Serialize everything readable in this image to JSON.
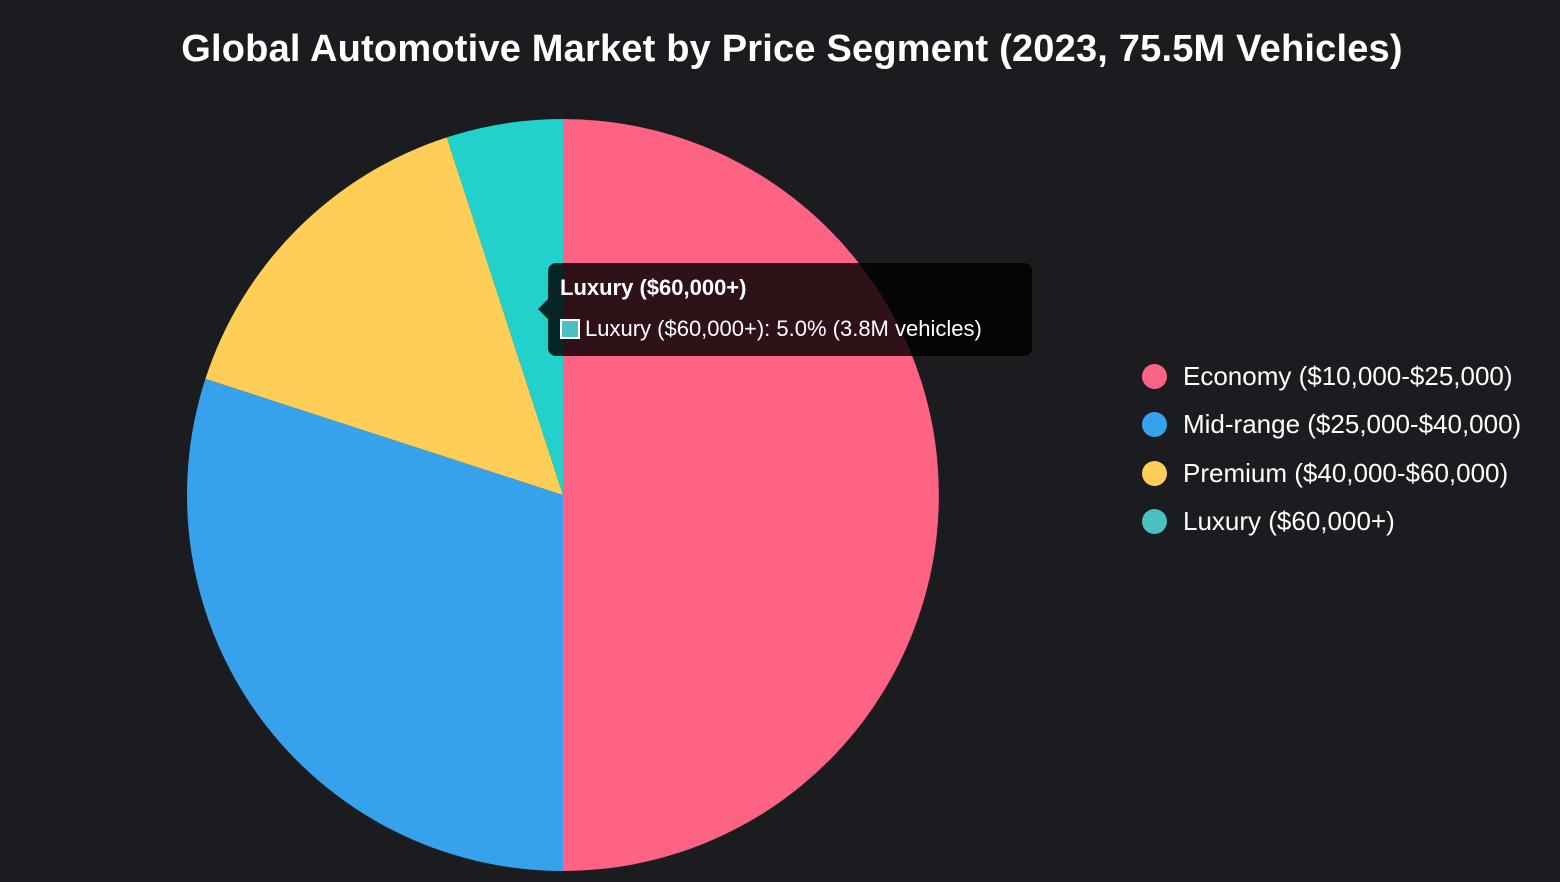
{
  "chart_data": {
    "type": "pie",
    "title": "Global Automotive Market by Price Segment (2023, 75.5M Vehicles)",
    "categories": [
      "Economy ($10,000-$25,000)",
      "Mid-range ($25,000-$40,000)",
      "Premium ($40,000-$60,000)",
      "Luxury ($60,000+)"
    ],
    "values": [
      50.0,
      30.0,
      15.0,
      5.0
    ],
    "unit": "%",
    "colors": [
      "#ff6384",
      "#36a2eb",
      "#ffce56",
      "#22d0cc"
    ],
    "legend_colors": [
      "#ff6384",
      "#36a2eb",
      "#ffce56",
      "#4bc0c0"
    ],
    "legend_position": "right"
  },
  "tooltip": {
    "title": "Luxury ($60,000+)",
    "body": "Luxury ($60,000+): 5.0% (3.8M vehicles)",
    "swatch_color": "#4bc0c0"
  },
  "background_color": "#1b1c20"
}
